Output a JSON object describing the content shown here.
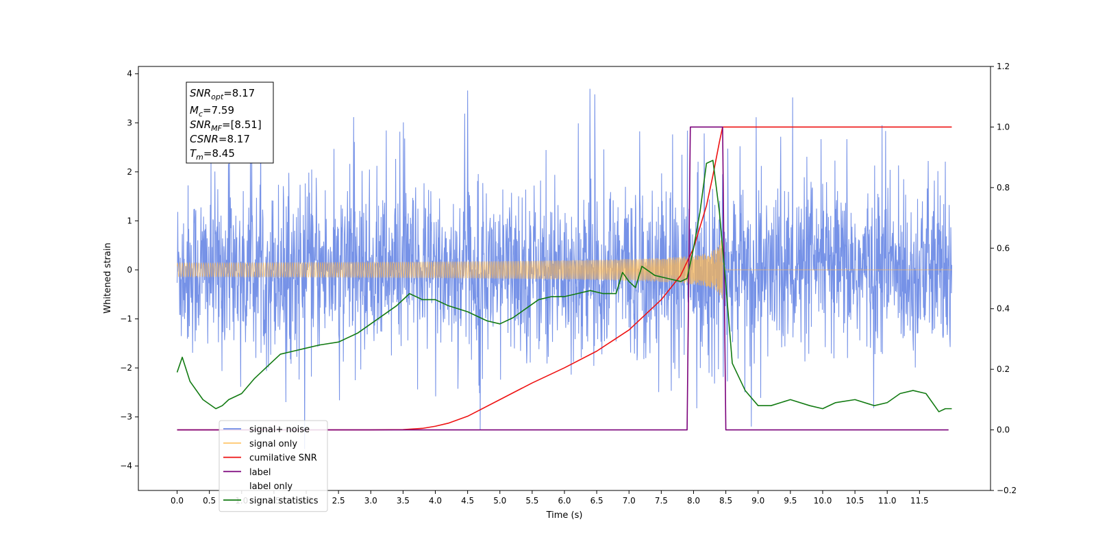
{
  "chart_data": {
    "type": "line",
    "xlabel": "Time (s)",
    "ylabel_left": "Whitened strain",
    "ylabel_right": "",
    "xlim": [
      -0.6,
      12.6
    ],
    "ylim_left": [
      -4.5,
      4.15
    ],
    "ylim_right": [
      -0.2,
      1.2
    ],
    "x_ticks": [
      0.0,
      0.5,
      1.0,
      1.5,
      2.0,
      2.5,
      3.0,
      3.5,
      4.0,
      4.5,
      5.0,
      5.5,
      6.0,
      6.5,
      7.0,
      7.5,
      8.0,
      8.5,
      9.0,
      9.5,
      10.0,
      10.5,
      11.0,
      11.5
    ],
    "y_ticks_left": [
      -4,
      -3,
      -2,
      -1,
      0,
      1,
      2,
      3,
      4
    ],
    "y_ticks_right": [
      -0.2,
      0.0,
      0.2,
      0.4,
      0.6,
      0.8,
      1.0,
      1.2
    ],
    "grid": false,
    "legend_position": "lower-left",
    "annotation": {
      "snr_opt": "8.17",
      "mc": "7.59",
      "snr_mf": "[8.51]",
      "csnr": "8.17",
      "tm": "8.45"
    },
    "series": [
      {
        "name": "signal+ noise",
        "axis": "left",
        "color": "#6f8ce6",
        "kind": "noise",
        "x_range": [
          0.0,
          12.0
        ],
        "std": 0.85,
        "spike_max": 3.75,
        "spike_min": -4.1
      },
      {
        "name": "signal only",
        "axis": "left",
        "color": "#ffb84d",
        "kind": "chirp",
        "x_range": [
          0.0,
          8.45
        ],
        "end_amplitude": 0.65
      },
      {
        "name": "cumilative SNR",
        "axis": "right",
        "color": "#ee1111",
        "x": [
          0.0,
          3.0,
          3.5,
          3.8,
          4.0,
          4.2,
          4.5,
          5.0,
          5.5,
          6.0,
          6.5,
          7.0,
          7.5,
          7.8,
          8.0,
          8.2,
          8.3,
          8.4,
          8.45,
          12.0
        ],
        "y": [
          0.0,
          0.0,
          0.001,
          0.005,
          0.012,
          0.022,
          0.045,
          0.1,
          0.155,
          0.205,
          0.26,
          0.33,
          0.43,
          0.51,
          0.6,
          0.74,
          0.84,
          0.95,
          1.0,
          1.0
        ]
      },
      {
        "name": "label",
        "axis": "right",
        "color": "#7a007a",
        "x": [
          0.0,
          7.9,
          7.95,
          8.45,
          8.5,
          11.95
        ],
        "y": [
          0.0,
          0.0,
          1.0,
          1.0,
          0.0,
          0.0
        ]
      },
      {
        "name": "label only",
        "axis": "right",
        "color": "#cccccc",
        "hidden": true
      },
      {
        "name": "signal statistics",
        "axis": "right",
        "color": "#117a11",
        "x": [
          0.0,
          0.08,
          0.2,
          0.4,
          0.6,
          0.7,
          0.8,
          1.0,
          1.2,
          1.4,
          1.6,
          1.8,
          2.0,
          2.2,
          2.5,
          2.8,
          3.0,
          3.2,
          3.4,
          3.6,
          3.8,
          4.0,
          4.2,
          4.5,
          4.8,
          5.0,
          5.2,
          5.4,
          5.6,
          5.8,
          6.0,
          6.2,
          6.4,
          6.6,
          6.8,
          6.9,
          7.0,
          7.1,
          7.2,
          7.4,
          7.6,
          7.8,
          7.9,
          8.0,
          8.1,
          8.2,
          8.3,
          8.4,
          8.5,
          8.6,
          8.8,
          9.0,
          9.2,
          9.5,
          9.8,
          10.0,
          10.2,
          10.5,
          10.8,
          11.0,
          11.2,
          11.4,
          11.6,
          11.8,
          11.9,
          12.0
        ],
        "y": [
          0.19,
          0.24,
          0.16,
          0.1,
          0.07,
          0.08,
          0.1,
          0.12,
          0.17,
          0.21,
          0.25,
          0.26,
          0.27,
          0.28,
          0.29,
          0.32,
          0.35,
          0.38,
          0.41,
          0.45,
          0.43,
          0.43,
          0.41,
          0.39,
          0.36,
          0.35,
          0.37,
          0.4,
          0.43,
          0.44,
          0.44,
          0.45,
          0.46,
          0.45,
          0.45,
          0.52,
          0.49,
          0.47,
          0.54,
          0.51,
          0.5,
          0.49,
          0.5,
          0.6,
          0.72,
          0.88,
          0.89,
          0.72,
          0.48,
          0.22,
          0.13,
          0.08,
          0.08,
          0.1,
          0.08,
          0.07,
          0.09,
          0.1,
          0.08,
          0.09,
          0.12,
          0.13,
          0.12,
          0.06,
          0.07,
          0.07
        ]
      }
    ]
  }
}
